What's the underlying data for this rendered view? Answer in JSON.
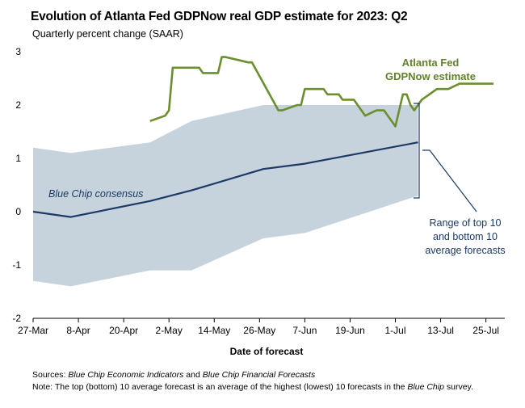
{
  "chart_data": {
    "type": "line",
    "title": "Evolution of Atlanta Fed GDPNow real GDP estimate for 2023: Q2",
    "subtitle": "Quarterly percent change (SAAR)",
    "xlabel": "Date of forecast",
    "ylabel": "",
    "ylim": [
      -2,
      3
    ],
    "yticks": [
      "-2",
      "-1",
      "0",
      "1",
      "2",
      "3"
    ],
    "xticks": [
      "27-Mar",
      "8-Apr",
      "20-Apr",
      "2-May",
      "14-May",
      "26-May",
      "7-Jun",
      "19-Jun",
      "1-Jul",
      "13-Jul",
      "25-Jul"
    ],
    "series": [
      {
        "name": "Atlanta Fed GDPNow estimate",
        "color": "#6b8e2f",
        "x": [
          "2023-04-27",
          "2023-05-01",
          "2023-05-02",
          "2023-05-03",
          "2023-05-04",
          "2023-05-10",
          "2023-05-11",
          "2023-05-15",
          "2023-05-16",
          "2023-05-17",
          "2023-05-23",
          "2023-05-24",
          "2023-05-31",
          "2023-06-01",
          "2023-06-05",
          "2023-06-06",
          "2023-06-07",
          "2023-06-08",
          "2023-06-12",
          "2023-06-13",
          "2023-06-14",
          "2023-06-15",
          "2023-06-16",
          "2023-06-17",
          "2023-06-20",
          "2023-06-21",
          "2023-06-23",
          "2023-06-26",
          "2023-06-27",
          "2023-06-28",
          "2023-06-29",
          "2023-07-01",
          "2023-07-03",
          "2023-07-04",
          "2023-07-05",
          "2023-07-06",
          "2023-07-07",
          "2023-07-08",
          "2023-07-10",
          "2023-07-12",
          "2023-07-15",
          "2023-07-18",
          "2023-07-20",
          "2023-07-27"
        ],
        "values": [
          1.7,
          1.8,
          1.9,
          2.7,
          2.7,
          2.7,
          2.6,
          2.6,
          2.9,
          2.9,
          2.8,
          2.8,
          1.9,
          1.9,
          2.0,
          2.0,
          2.3,
          2.3,
          2.3,
          2.2,
          2.2,
          2.2,
          2.2,
          2.1,
          2.1,
          2.0,
          1.8,
          1.9,
          1.9,
          1.9,
          1.8,
          1.6,
          2.2,
          2.2,
          2.0,
          1.9,
          2.0,
          2.1,
          2.2,
          2.3,
          2.3,
          2.4,
          2.4,
          2.4
        ]
      },
      {
        "name": "Blue Chip consensus",
        "color": "#1b3a66",
        "x": [
          "2023-03-27",
          "2023-04-06",
          "2023-04-27",
          "2023-05-08",
          "2023-05-27",
          "2023-06-07",
          "2023-07-07"
        ],
        "values": [
          0.0,
          -0.1,
          0.2,
          0.4,
          0.8,
          0.9,
          1.3
        ]
      }
    ],
    "range_band": {
      "name": "Range of top 10 and bottom 10 average forecasts",
      "color": "#c7d3dc",
      "x": [
        "2023-03-27",
        "2023-04-06",
        "2023-04-27",
        "2023-05-08",
        "2023-05-27",
        "2023-06-07",
        "2023-07-07"
      ],
      "upper": [
        1.2,
        1.1,
        1.3,
        1.7,
        2.0,
        2.0,
        2.0
      ],
      "lower": [
        -1.3,
        -1.4,
        -1.1,
        -1.1,
        -0.5,
        -0.4,
        0.3
      ]
    },
    "grid": false
  },
  "annotations": {
    "gdpnow_line1": "Atlanta Fed",
    "gdpnow_line2": "GDPNow estimate",
    "bluechip": "Blue Chip consensus",
    "range_line1": "Range of top 10",
    "range_line2": "and bottom 10",
    "range_line3": "average forecasts"
  },
  "footer": {
    "sources_label": "Sources:",
    "sources_text1": "Blue Chip Economic Indicators",
    "sources_and": "and",
    "sources_text2": "Blue Chip Financial Forecasts",
    "note_label": "Note:",
    "note_text1": "The top (bottom) 10 average forecast is an average of the highest (lowest) 10 forecasts in the",
    "note_italic": "Blue Chip",
    "note_text2": "survey."
  }
}
